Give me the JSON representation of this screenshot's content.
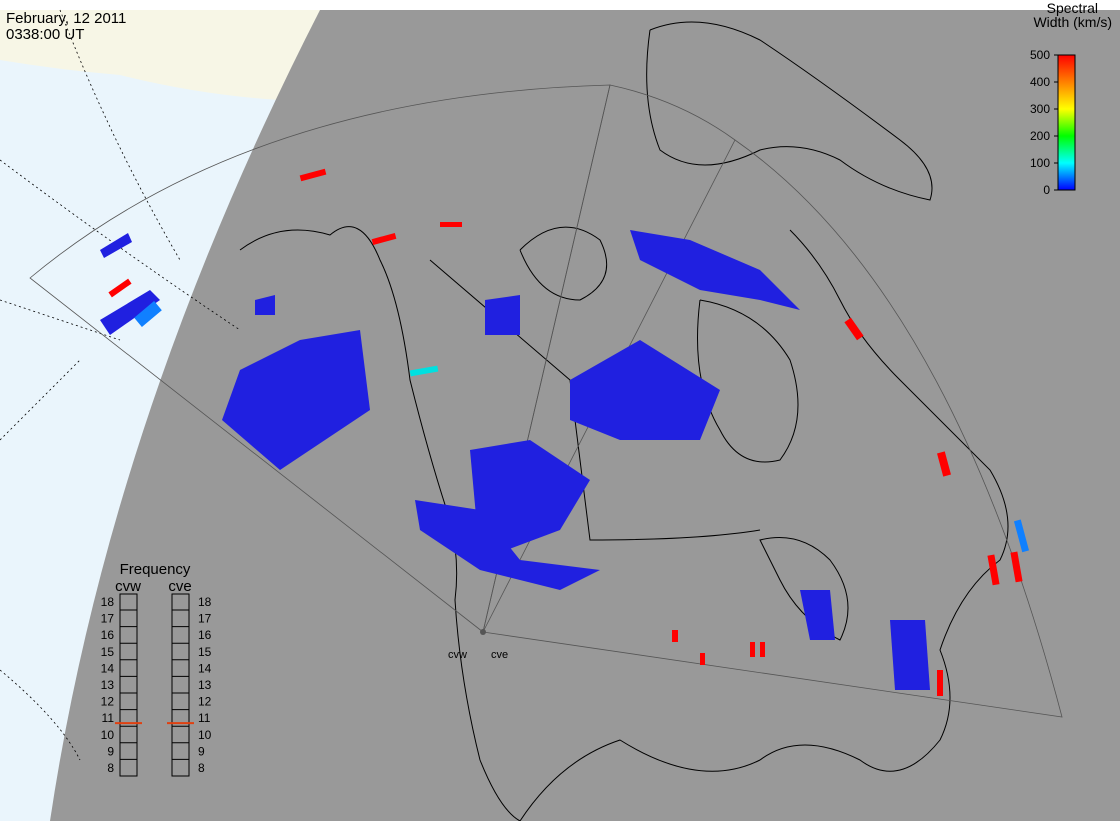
{
  "header": {
    "date": "February, 12 2011",
    "time": "0338:00 UT"
  },
  "colorbar": {
    "title": [
      "Spectral",
      "Width (km/s)"
    ],
    "lim": [
      0,
      500
    ],
    "ticks": [
      0,
      100,
      200,
      300,
      400,
      500
    ],
    "colors": [
      "#0000ff",
      "#00ffff",
      "#00ff00",
      "#ffff00",
      "#ff8000",
      "#ff0000"
    ]
  },
  "frequency": {
    "title": "Frequency",
    "lim": [
      8,
      18
    ],
    "ticks": [
      8,
      9,
      10,
      11,
      12,
      13,
      14,
      15,
      16,
      17,
      18
    ],
    "color": "#e04010",
    "radars": [
      {
        "name": "cvw",
        "value": 10.7
      },
      {
        "name": "cve",
        "value": 10.7
      }
    ]
  },
  "radar_labels": [
    "cvw",
    "cve"
  ]
}
